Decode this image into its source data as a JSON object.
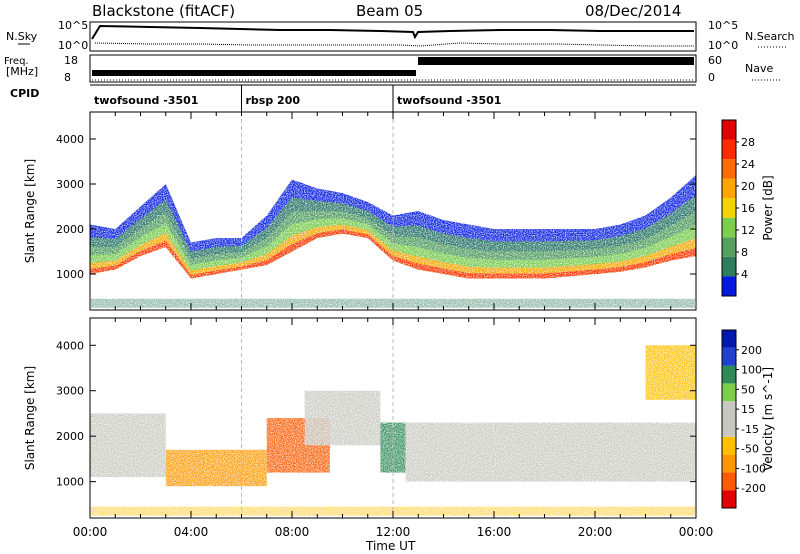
{
  "header": {
    "station": "Blackstone (fitACF)",
    "beam": "Beam 05",
    "date": "08/Dec/2014"
  },
  "noise_panel": {
    "left_label": "N.Sky",
    "right_label": "N.Search",
    "left_ticks": [
      "10^5",
      "10^0"
    ],
    "right_ticks": [
      "10^5",
      "10^0"
    ]
  },
  "freq_panel": {
    "left_label_line1": "Freq.",
    "left_label_line2": "[MHz]",
    "right_label": "Nave",
    "left_ticks": [
      "18",
      "8"
    ],
    "right_ticks": [
      "60",
      "0"
    ]
  },
  "cpid": {
    "label": "CPID",
    "segments": [
      {
        "name": "twofsound -3501",
        "start_hour": 0,
        "end_hour": 6
      },
      {
        "name": "rbsp 200",
        "start_hour": 6,
        "end_hour": 12
      },
      {
        "name": "twofsound -3501",
        "start_hour": 12,
        "end_hour": 24
      }
    ]
  },
  "colors": {
    "power": [
      "#0018e0",
      "#2e7d5e",
      "#55a060",
      "#7ccf4e",
      "#f2d400",
      "#ffa500",
      "#ff6a00",
      "#ff2a00",
      "#e00000"
    ],
    "velocity": [
      "#e00000",
      "#ff5a00",
      "#ff9800",
      "#ffc000",
      "#c8c8c0",
      "#c8c8c0",
      "#7ccf4e",
      "#2e8b57",
      "#2040d0",
      "#0018b0"
    ]
  },
  "chart_data": [
    {
      "type": "heatmap",
      "title": "",
      "ylabel": "Slant Range [km]",
      "xlabel": "",
      "xlim": [
        0,
        24
      ],
      "ylim": [
        200,
        4600
      ],
      "y_ticks": [
        1000,
        2000,
        3000,
        4000
      ],
      "colorbar": {
        "label": "Power [dB]",
        "ticks": [
          "4",
          "8",
          "12",
          "16",
          "20",
          "24",
          "28"
        ],
        "range": [
          0,
          32
        ]
      },
      "echo_band": [
        {
          "hour": 0.0,
          "lower": 1000,
          "upper": 2100
        },
        {
          "hour": 1.0,
          "lower": 1100,
          "upper": 2000
        },
        {
          "hour": 2.0,
          "lower": 1400,
          "upper": 2500
        },
        {
          "hour": 3.0,
          "lower": 1600,
          "upper": 3000
        },
        {
          "hour": 4.0,
          "lower": 900,
          "upper": 1700
        },
        {
          "hour": 5.0,
          "lower": 1000,
          "upper": 1800
        },
        {
          "hour": 6.0,
          "lower": 1100,
          "upper": 1800
        },
        {
          "hour": 7.0,
          "lower": 1200,
          "upper": 2300
        },
        {
          "hour": 8.0,
          "lower": 1500,
          "upper": 3100
        },
        {
          "hour": 9.0,
          "lower": 1800,
          "upper": 2900
        },
        {
          "hour": 10.0,
          "lower": 1900,
          "upper": 2800
        },
        {
          "hour": 11.0,
          "lower": 1800,
          "upper": 2600
        },
        {
          "hour": 12.0,
          "lower": 1300,
          "upper": 2300
        },
        {
          "hour": 13.0,
          "lower": 1100,
          "upper": 2400
        },
        {
          "hour": 14.0,
          "lower": 1000,
          "upper": 2200
        },
        {
          "hour": 15.0,
          "lower": 900,
          "upper": 2100
        },
        {
          "hour": 16.0,
          "lower": 900,
          "upper": 2000
        },
        {
          "hour": 17.0,
          "lower": 900,
          "upper": 2000
        },
        {
          "hour": 18.0,
          "lower": 900,
          "upper": 2000
        },
        {
          "hour": 19.0,
          "lower": 950,
          "upper": 2000
        },
        {
          "hour": 20.0,
          "lower": 1000,
          "upper": 2000
        },
        {
          "hour": 21.0,
          "lower": 1050,
          "upper": 2100
        },
        {
          "hour": 22.0,
          "lower": 1150,
          "upper": 2300
        },
        {
          "hour": 23.0,
          "lower": 1300,
          "upper": 2700
        },
        {
          "hour": 24.0,
          "lower": 1400,
          "upper": 3200
        }
      ]
    },
    {
      "type": "heatmap",
      "title": "",
      "ylabel": "Slant Range [km]",
      "xlabel": "Time UT",
      "xlim": [
        0,
        24
      ],
      "ylim": [
        200,
        4600
      ],
      "x_ticks": [
        "00:00",
        "04:00",
        "08:00",
        "12:00",
        "16:00",
        "20:00",
        "00:00"
      ],
      "y_ticks": [
        1000,
        2000,
        3000,
        4000
      ],
      "colorbar": {
        "label": "Velocity [m s^-1]",
        "ticks": [
          "-200",
          "-100",
          "-50",
          "-15",
          "15",
          "50",
          "100",
          "200"
        ],
        "range": [
          -250,
          250
        ]
      },
      "regions": [
        {
          "start_hour": 0.0,
          "end_hour": 3.0,
          "lower": 1100,
          "upper": 2500,
          "velocity": 0
        },
        {
          "start_hour": 3.0,
          "end_hour": 7.0,
          "lower": 900,
          "upper": 1700,
          "velocity": -60
        },
        {
          "start_hour": 7.0,
          "end_hour": 9.5,
          "lower": 1200,
          "upper": 2400,
          "velocity": -120
        },
        {
          "start_hour": 8.5,
          "end_hour": 11.5,
          "lower": 1800,
          "upper": 3000,
          "velocity": 0
        },
        {
          "start_hour": 11.5,
          "end_hour": 12.5,
          "lower": 1200,
          "upper": 2300,
          "velocity": 60
        },
        {
          "start_hour": 12.5,
          "end_hour": 24.0,
          "lower": 1000,
          "upper": 2300,
          "velocity": 0
        },
        {
          "start_hour": 22.0,
          "end_hour": 24.0,
          "lower": 2800,
          "upper": 4000,
          "velocity": -40
        }
      ]
    }
  ]
}
